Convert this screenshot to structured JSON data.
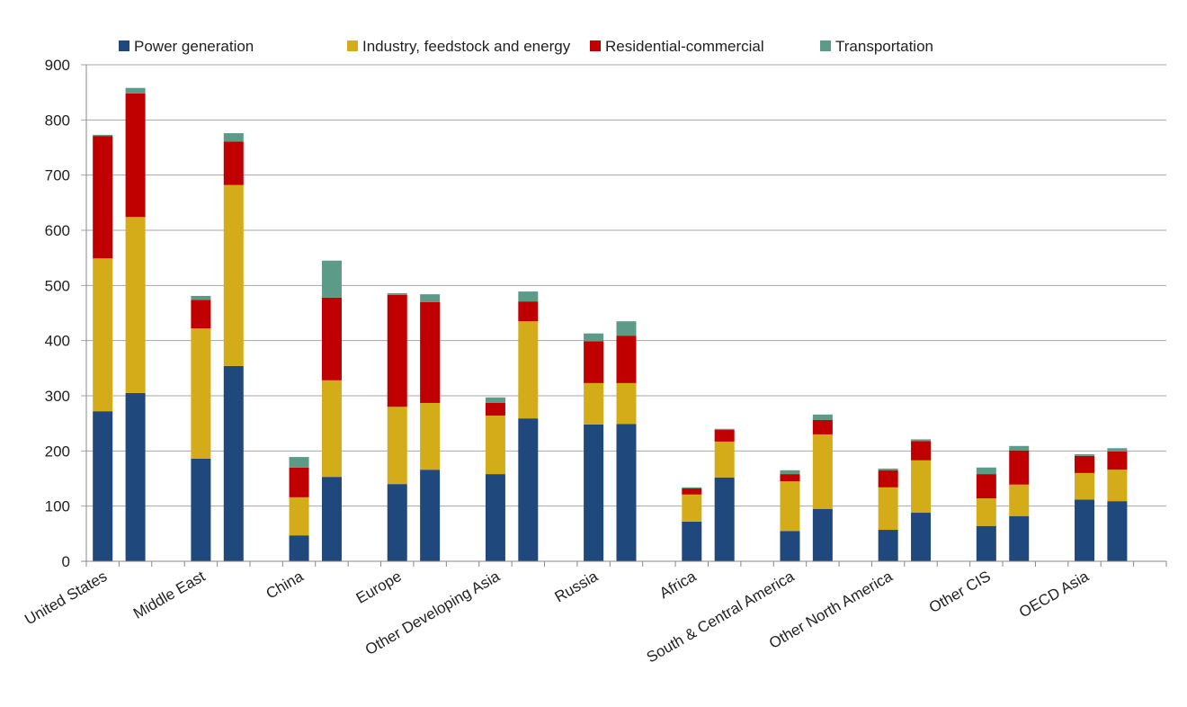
{
  "chart_data": {
    "type": "bar",
    "stacked": true,
    "title": "",
    "xlabel": "",
    "ylabel": "",
    "ylim": [
      0,
      900
    ],
    "yticks": [
      0,
      100,
      200,
      300,
      400,
      500,
      600,
      700,
      800,
      900
    ],
    "grid": true,
    "legend_position": "top",
    "categories": [
      "United States",
      "Middle East",
      "China",
      "Europe",
      "Other Developing Asia",
      "Russia",
      "Africa",
      "South & Central America",
      "Other North America",
      "Other CIS",
      "OECD Asia"
    ],
    "bars_per_category": 2,
    "series": [
      {
        "name": "Power generation",
        "color": "#1f497d",
        "values": [
          [
            272,
            305
          ],
          [
            186,
            354
          ],
          [
            47,
            153
          ],
          [
            140,
            166
          ],
          [
            158,
            259
          ],
          [
            248,
            249
          ],
          [
            72,
            152
          ],
          [
            55,
            95
          ],
          [
            57,
            88
          ],
          [
            64,
            82
          ],
          [
            112,
            109
          ]
        ]
      },
      {
        "name": "Industry, feedstock and energy",
        "color": "#d4ac1a",
        "values": [
          [
            277,
            319
          ],
          [
            236,
            328
          ],
          [
            69,
            175
          ],
          [
            140,
            121
          ],
          [
            106,
            176
          ],
          [
            75,
            74
          ],
          [
            49,
            65
          ],
          [
            90,
            135
          ],
          [
            77,
            95
          ],
          [
            50,
            57
          ],
          [
            48,
            57
          ]
        ]
      },
      {
        "name": "Residential-commercial",
        "color": "#c00000",
        "values": [
          [
            222,
            224
          ],
          [
            52,
            79
          ],
          [
            54,
            150
          ],
          [
            203,
            183
          ],
          [
            23,
            36
          ],
          [
            76,
            86
          ],
          [
            11,
            21
          ],
          [
            13,
            26
          ],
          [
            31,
            35
          ],
          [
            44,
            62
          ],
          [
            31,
            33
          ]
        ]
      },
      {
        "name": "Transportation",
        "color": "#5b9b88",
        "values": [
          [
            2,
            10
          ],
          [
            7,
            15
          ],
          [
            19,
            67
          ],
          [
            3,
            14
          ],
          [
            10,
            18
          ],
          [
            14,
            26
          ],
          [
            2,
            2
          ],
          [
            7,
            10
          ],
          [
            3,
            3
          ],
          [
            12,
            8
          ],
          [
            3,
            6
          ]
        ]
      }
    ]
  }
}
